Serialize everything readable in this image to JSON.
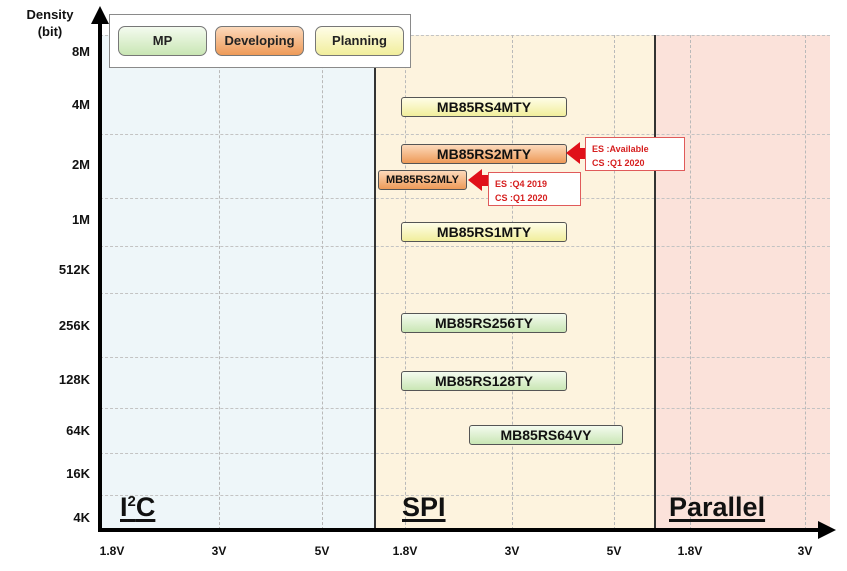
{
  "y_axis": {
    "title_line1": "Density",
    "title_line2": "(bit)",
    "ticks": [
      "8M",
      "4M",
      "2M",
      "1M",
      "512K",
      "256K",
      "128K",
      "64K",
      "16K",
      "4K"
    ]
  },
  "x_axis": {
    "ticks": [
      "1.8V",
      "3V",
      "5V",
      "1.8V",
      "3V",
      "5V",
      "1.8V",
      "3V"
    ]
  },
  "regions": {
    "i2c": {
      "main": "I",
      "sup": "2",
      "tail": "C"
    },
    "spi": "SPI",
    "parallel": "Parallel"
  },
  "legend": {
    "mp": "MP",
    "developing": "Developing",
    "planning": "Planning"
  },
  "products": [
    {
      "name": "MB85RS4MTY",
      "status": "planning",
      "density": "4M"
    },
    {
      "name": "MB85RS2MTY",
      "status": "developing",
      "density": "2M"
    },
    {
      "name": "MB85RS2MLY",
      "status": "developing",
      "density": "2M"
    },
    {
      "name": "MB85RS1MTY",
      "status": "planning",
      "density": "1M"
    },
    {
      "name": "MB85RS256TY",
      "status": "mp",
      "density": "256K"
    },
    {
      "name": "MB85RS128TY",
      "status": "mp",
      "density": "128K"
    },
    {
      "name": "MB85RS64VY",
      "status": "mp",
      "density": "64K"
    }
  ],
  "notes": [
    {
      "line1": "ES :Available",
      "line2": "CS :Q1 2020"
    },
    {
      "line1": "ES :Q4 2019",
      "line2": "CS :Q1 2020"
    }
  ],
  "colors": {
    "mp": "#c9e6b4",
    "developing": "#ee9a58",
    "planning": "#f1ee9c",
    "note_red": "#d61f1f"
  }
}
